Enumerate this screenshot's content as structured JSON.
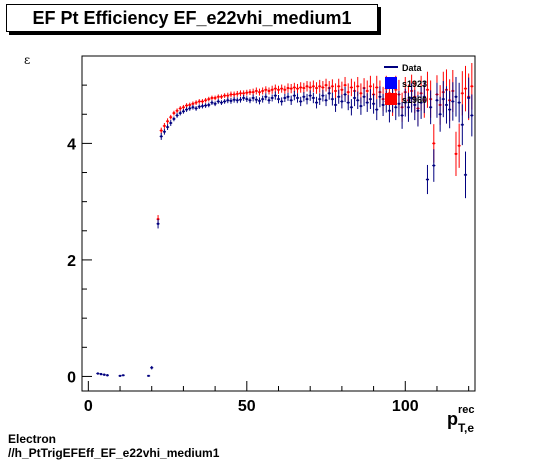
{
  "title": "EF Pt Efficiency EF_e22vhi_medium1",
  "footer": {
    "line1": "Electron",
    "line2": "//h_PtTrigEFEff_EF_e22vhi_medium1"
  },
  "chart_data": {
    "type": "scatter",
    "xlabel_main": "p",
    "xlabel_sup": "rec",
    "xlabel_sub": "T,e",
    "ylabel": "ε",
    "xlim": [
      -2,
      122
    ],
    "ylim": [
      -0.25,
      5.5
    ],
    "xticks": [
      0,
      50,
      100
    ],
    "yticks": [
      0,
      2,
      4
    ],
    "legend_position": "top-right",
    "legend": [
      {
        "name": "Data",
        "color": "#00007f",
        "style": "line"
      },
      {
        "name": "s1923",
        "color": "#0000ff",
        "style": "box"
      },
      {
        "name": "s1960",
        "color": "#ff0000",
        "style": "box"
      }
    ],
    "series": [
      {
        "name": "Data",
        "color": "#00007f",
        "points": [
          [
            3,
            0.05,
            0.02
          ],
          [
            4,
            0.04,
            0.02
          ],
          [
            5,
            0.03,
            0.02
          ],
          [
            6,
            0.02,
            0.02
          ],
          [
            10,
            0.01,
            0.01
          ],
          [
            11,
            0.02,
            0.01
          ],
          [
            19,
            0.01,
            0.01
          ],
          [
            20,
            0.15,
            0.03
          ],
          [
            22,
            2.62,
            0.08
          ],
          [
            23,
            4.12,
            0.06
          ],
          [
            24,
            4.2,
            0.05
          ],
          [
            25,
            4.28,
            0.05
          ],
          [
            26,
            4.35,
            0.05
          ],
          [
            27,
            4.42,
            0.04
          ],
          [
            28,
            4.48,
            0.04
          ],
          [
            29,
            4.52,
            0.04
          ],
          [
            30,
            4.55,
            0.04
          ],
          [
            31,
            4.58,
            0.04
          ],
          [
            32,
            4.6,
            0.04
          ],
          [
            33,
            4.62,
            0.04
          ],
          [
            34,
            4.6,
            0.04
          ],
          [
            35,
            4.63,
            0.04
          ],
          [
            36,
            4.64,
            0.04
          ],
          [
            37,
            4.65,
            0.04
          ],
          [
            38,
            4.66,
            0.04
          ],
          [
            39,
            4.7,
            0.04
          ],
          [
            40,
            4.68,
            0.04
          ],
          [
            41,
            4.72,
            0.04
          ],
          [
            42,
            4.7,
            0.04
          ],
          [
            43,
            4.72,
            0.04
          ],
          [
            44,
            4.74,
            0.05
          ],
          [
            45,
            4.73,
            0.05
          ],
          [
            46,
            4.75,
            0.05
          ],
          [
            47,
            4.74,
            0.05
          ],
          [
            48,
            4.75,
            0.05
          ],
          [
            49,
            4.78,
            0.05
          ],
          [
            50,
            4.76,
            0.05
          ],
          [
            51,
            4.74,
            0.05
          ],
          [
            52,
            4.78,
            0.06
          ],
          [
            53,
            4.75,
            0.06
          ],
          [
            54,
            4.73,
            0.06
          ],
          [
            55,
            4.76,
            0.06
          ],
          [
            56,
            4.8,
            0.06
          ],
          [
            57,
            4.74,
            0.06
          ],
          [
            58,
            4.78,
            0.06
          ],
          [
            59,
            4.82,
            0.07
          ],
          [
            60,
            4.76,
            0.07
          ],
          [
            61,
            4.72,
            0.07
          ],
          [
            62,
            4.78,
            0.07
          ],
          [
            63,
            4.8,
            0.07
          ],
          [
            64,
            4.74,
            0.08
          ],
          [
            65,
            4.82,
            0.08
          ],
          [
            66,
            4.78,
            0.08
          ],
          [
            67,
            4.72,
            0.08
          ],
          [
            68,
            4.8,
            0.08
          ],
          [
            69,
            4.76,
            0.09
          ],
          [
            70,
            4.82,
            0.09
          ],
          [
            71,
            4.78,
            0.09
          ],
          [
            72,
            4.7,
            0.1
          ],
          [
            73,
            4.76,
            0.1
          ],
          [
            74,
            4.82,
            0.1
          ],
          [
            75,
            4.74,
            0.1
          ],
          [
            76,
            4.86,
            0.11
          ],
          [
            77,
            4.76,
            0.11
          ],
          [
            78,
            4.66,
            0.12
          ],
          [
            79,
            4.8,
            0.12
          ],
          [
            80,
            4.72,
            0.12
          ],
          [
            81,
            4.84,
            0.13
          ],
          [
            82,
            4.7,
            0.13
          ],
          [
            83,
            4.62,
            0.14
          ],
          [
            84,
            4.78,
            0.14
          ],
          [
            85,
            4.74,
            0.15
          ],
          [
            86,
            4.64,
            0.15
          ],
          [
            87,
            4.8,
            0.16
          ],
          [
            88,
            4.7,
            0.16
          ],
          [
            89,
            4.76,
            0.17
          ],
          [
            90,
            4.68,
            0.17
          ],
          [
            91,
            4.58,
            0.18
          ],
          [
            92,
            4.8,
            0.18
          ],
          [
            93,
            4.66,
            0.19
          ],
          [
            94,
            4.72,
            0.19
          ],
          [
            95,
            4.56,
            0.2
          ],
          [
            96,
            4.74,
            0.21
          ],
          [
            97,
            4.62,
            0.22
          ],
          [
            98,
            4.68,
            0.22
          ],
          [
            99,
            4.48,
            0.23
          ],
          [
            100,
            4.7,
            0.24
          ],
          [
            101,
            4.62,
            0.25
          ],
          [
            102,
            4.78,
            0.25
          ],
          [
            103,
            4.66,
            0.26
          ],
          [
            104,
            4.56,
            0.27
          ],
          [
            105,
            4.7,
            0.28
          ],
          [
            106,
            4.8,
            0.28
          ],
          [
            107,
            3.38,
            0.25
          ],
          [
            108,
            4.62,
            0.29
          ],
          [
            109,
            3.62,
            0.28
          ],
          [
            110,
            4.74,
            0.3
          ],
          [
            111,
            4.5,
            0.3
          ],
          [
            112,
            4.76,
            0.31
          ],
          [
            113,
            4.66,
            0.32
          ],
          [
            114,
            4.58,
            0.32
          ],
          [
            115,
            4.72,
            0.33
          ],
          [
            116,
            4.8,
            0.34
          ],
          [
            117,
            4.7,
            0.34
          ],
          [
            118,
            4.32,
            0.35
          ],
          [
            119,
            3.46,
            0.4
          ],
          [
            120,
            4.78,
            0.35
          ],
          [
            121,
            4.48,
            0.36
          ]
        ]
      },
      {
        "name": "s1960",
        "color": "#ff0000",
        "points": [
          [
            22,
            2.7,
            0.07
          ],
          [
            23,
            4.22,
            0.05
          ],
          [
            24,
            4.3,
            0.05
          ],
          [
            25,
            4.38,
            0.05
          ],
          [
            26,
            4.45,
            0.04
          ],
          [
            27,
            4.52,
            0.04
          ],
          [
            28,
            4.56,
            0.04
          ],
          [
            29,
            4.6,
            0.04
          ],
          [
            30,
            4.62,
            0.04
          ],
          [
            31,
            4.65,
            0.04
          ],
          [
            32,
            4.66,
            0.04
          ],
          [
            33,
            4.68,
            0.04
          ],
          [
            34,
            4.7,
            0.04
          ],
          [
            35,
            4.72,
            0.04
          ],
          [
            36,
            4.72,
            0.04
          ],
          [
            37,
            4.74,
            0.04
          ],
          [
            38,
            4.76,
            0.04
          ],
          [
            39,
            4.78,
            0.04
          ],
          [
            40,
            4.78,
            0.04
          ],
          [
            41,
            4.8,
            0.04
          ],
          [
            42,
            4.8,
            0.04
          ],
          [
            43,
            4.82,
            0.04
          ],
          [
            44,
            4.82,
            0.05
          ],
          [
            45,
            4.84,
            0.05
          ],
          [
            46,
            4.84,
            0.05
          ],
          [
            47,
            4.85,
            0.05
          ],
          [
            48,
            4.86,
            0.05
          ],
          [
            49,
            4.86,
            0.05
          ],
          [
            50,
            4.87,
            0.05
          ],
          [
            51,
            4.88,
            0.05
          ],
          [
            52,
            4.88,
            0.06
          ],
          [
            53,
            4.9,
            0.06
          ],
          [
            54,
            4.88,
            0.06
          ],
          [
            55,
            4.9,
            0.06
          ],
          [
            56,
            4.92,
            0.06
          ],
          [
            57,
            4.9,
            0.06
          ],
          [
            58,
            4.92,
            0.07
          ],
          [
            59,
            4.94,
            0.07
          ],
          [
            60,
            4.92,
            0.07
          ],
          [
            61,
            4.94,
            0.07
          ],
          [
            62,
            4.92,
            0.07
          ],
          [
            63,
            4.95,
            0.08
          ],
          [
            64,
            4.94,
            0.08
          ],
          [
            65,
            4.96,
            0.08
          ],
          [
            66,
            4.94,
            0.08
          ],
          [
            67,
            4.96,
            0.09
          ],
          [
            68,
            4.95,
            0.09
          ],
          [
            69,
            4.98,
            0.09
          ],
          [
            70,
            4.96,
            0.1
          ],
          [
            71,
            4.98,
            0.1
          ],
          [
            72,
            4.95,
            0.1
          ],
          [
            73,
            4.98,
            0.11
          ],
          [
            74,
            4.96,
            0.11
          ],
          [
            75,
            5.0,
            0.11
          ],
          [
            76,
            4.95,
            0.12
          ],
          [
            77,
            4.98,
            0.12
          ],
          [
            78,
            4.9,
            0.13
          ],
          [
            79,
            4.98,
            0.13
          ],
          [
            80,
            4.92,
            0.14
          ],
          [
            81,
            5.0,
            0.14
          ],
          [
            82,
            4.88,
            0.15
          ],
          [
            83,
            4.96,
            0.15
          ],
          [
            84,
            4.9,
            0.16
          ],
          [
            85,
            4.98,
            0.16
          ],
          [
            86,
            4.86,
            0.17
          ],
          [
            87,
            4.95,
            0.17
          ],
          [
            88,
            4.9,
            0.18
          ],
          [
            89,
            4.98,
            0.18
          ],
          [
            90,
            4.84,
            0.19
          ],
          [
            91,
            4.96,
            0.2
          ],
          [
            92,
            4.88,
            0.2
          ],
          [
            93,
            4.76,
            0.21
          ],
          [
            94,
            4.94,
            0.22
          ],
          [
            95,
            4.86,
            0.22
          ],
          [
            96,
            4.7,
            0.23
          ],
          [
            97,
            4.92,
            0.24
          ],
          [
            98,
            4.84,
            0.25
          ],
          [
            99,
            4.62,
            0.25
          ],
          [
            100,
            4.88,
            0.26
          ],
          [
            101,
            4.74,
            0.27
          ],
          [
            102,
            4.9,
            0.28
          ],
          [
            103,
            4.8,
            0.28
          ],
          [
            104,
            4.6,
            0.29
          ],
          [
            105,
            4.86,
            0.3
          ],
          [
            106,
            4.74,
            0.3
          ],
          [
            107,
            4.92,
            0.31
          ],
          [
            108,
            4.76,
            0.32
          ],
          [
            109,
            4.0,
            0.33
          ],
          [
            110,
            4.84,
            0.33
          ],
          [
            111,
            4.66,
            0.34
          ],
          [
            112,
            4.88,
            0.35
          ],
          [
            113,
            4.92,
            0.35
          ],
          [
            114,
            4.74,
            0.36
          ],
          [
            115,
            4.9,
            0.36
          ],
          [
            116,
            3.82,
            0.38
          ],
          [
            117,
            3.96,
            0.38
          ],
          [
            118,
            4.86,
            0.38
          ],
          [
            119,
            4.94,
            0.39
          ],
          [
            120,
            4.8,
            0.4
          ],
          [
            121,
            4.98,
            0.4
          ]
        ]
      }
    ]
  }
}
